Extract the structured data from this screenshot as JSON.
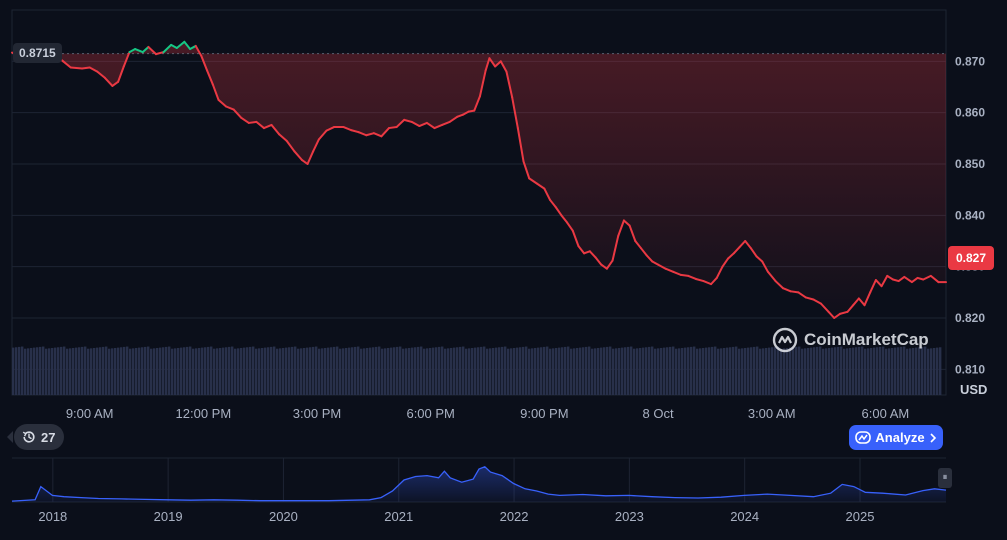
{
  "chart_data": {
    "type": "line",
    "unit_label": "USD",
    "time_axis_ticks": [
      "9:00 AM",
      "12:00 PM",
      "3:00 PM",
      "6:00 PM",
      "9:00 PM",
      "8 Oct",
      "3:00 AM",
      "6:00 AM"
    ],
    "time_axis_tick_hours": [
      9,
      12,
      15,
      18,
      21,
      24,
      27,
      30
    ],
    "x_range_hours": [
      6.95,
      31.6
    ],
    "ylim": [
      0.805,
      0.88
    ],
    "y_ticks": [
      "0.870",
      "0.860",
      "0.850",
      "0.840",
      "0.830",
      "0.820",
      "0.810"
    ],
    "y_tick_values": [
      0.87,
      0.86,
      0.85,
      0.84,
      0.83,
      0.82,
      0.81
    ],
    "open_price": 0.8715,
    "open_price_label": "0.8715",
    "last_price": 0.827,
    "last_price_label": "0.827",
    "price_series": [
      [
        6.95,
        0.8717
      ],
      [
        7.2,
        0.8712
      ],
      [
        7.5,
        0.8718
      ],
      [
        7.8,
        0.872
      ],
      [
        8.1,
        0.8712
      ],
      [
        8.3,
        0.87
      ],
      [
        8.5,
        0.8688
      ],
      [
        8.8,
        0.8686
      ],
      [
        9.0,
        0.8688
      ],
      [
        9.2,
        0.868
      ],
      [
        9.4,
        0.8668
      ],
      [
        9.6,
        0.8652
      ],
      [
        9.75,
        0.866
      ],
      [
        9.9,
        0.869
      ],
      [
        10.05,
        0.8718
      ],
      [
        10.2,
        0.8724
      ],
      [
        10.4,
        0.8718
      ],
      [
        10.55,
        0.8728
      ],
      [
        10.75,
        0.8714
      ],
      [
        10.95,
        0.8718
      ],
      [
        11.15,
        0.8732
      ],
      [
        11.3,
        0.8726
      ],
      [
        11.5,
        0.8738
      ],
      [
        11.65,
        0.8724
      ],
      [
        11.8,
        0.873
      ],
      [
        11.95,
        0.871
      ],
      [
        12.1,
        0.8682
      ],
      [
        12.25,
        0.8655
      ],
      [
        12.4,
        0.8625
      ],
      [
        12.6,
        0.8612
      ],
      [
        12.8,
        0.8606
      ],
      [
        13.0,
        0.859
      ],
      [
        13.2,
        0.858
      ],
      [
        13.4,
        0.8582
      ],
      [
        13.6,
        0.857
      ],
      [
        13.8,
        0.8576
      ],
      [
        14.0,
        0.8558
      ],
      [
        14.2,
        0.8545
      ],
      [
        14.4,
        0.8525
      ],
      [
        14.6,
        0.8508
      ],
      [
        14.75,
        0.85
      ],
      [
        14.9,
        0.8525
      ],
      [
        15.05,
        0.8548
      ],
      [
        15.25,
        0.8565
      ],
      [
        15.45,
        0.8572
      ],
      [
        15.7,
        0.8572
      ],
      [
        15.9,
        0.8566
      ],
      [
        16.1,
        0.8562
      ],
      [
        16.3,
        0.8556
      ],
      [
        16.5,
        0.856
      ],
      [
        16.7,
        0.8554
      ],
      [
        16.9,
        0.857
      ],
      [
        17.1,
        0.8572
      ],
      [
        17.3,
        0.8586
      ],
      [
        17.5,
        0.8582
      ],
      [
        17.7,
        0.8574
      ],
      [
        17.9,
        0.858
      ],
      [
        18.1,
        0.857
      ],
      [
        18.3,
        0.8576
      ],
      [
        18.5,
        0.8582
      ],
      [
        18.7,
        0.8592
      ],
      [
        18.85,
        0.8596
      ],
      [
        19.0,
        0.8602
      ],
      [
        19.15,
        0.8604
      ],
      [
        19.3,
        0.8632
      ],
      [
        19.45,
        0.8682
      ],
      [
        19.55,
        0.8706
      ],
      [
        19.7,
        0.869
      ],
      [
        19.85,
        0.87
      ],
      [
        20.0,
        0.868
      ],
      [
        20.15,
        0.863
      ],
      [
        20.3,
        0.857
      ],
      [
        20.45,
        0.8505
      ],
      [
        20.6,
        0.8472
      ],
      [
        20.8,
        0.8462
      ],
      [
        21.0,
        0.8452
      ],
      [
        21.15,
        0.843
      ],
      [
        21.3,
        0.8416
      ],
      [
        21.45,
        0.84
      ],
      [
        21.6,
        0.8386
      ],
      [
        21.75,
        0.837
      ],
      [
        21.9,
        0.834
      ],
      [
        22.05,
        0.8326
      ],
      [
        22.2,
        0.833
      ],
      [
        22.35,
        0.8318
      ],
      [
        22.5,
        0.8304
      ],
      [
        22.65,
        0.8296
      ],
      [
        22.8,
        0.8312
      ],
      [
        22.95,
        0.836
      ],
      [
        23.1,
        0.839
      ],
      [
        23.25,
        0.838
      ],
      [
        23.4,
        0.835
      ],
      [
        23.55,
        0.8336
      ],
      [
        23.7,
        0.8322
      ],
      [
        23.85,
        0.831
      ],
      [
        24.0,
        0.8304
      ],
      [
        24.2,
        0.8296
      ],
      [
        24.4,
        0.829
      ],
      [
        24.6,
        0.8284
      ],
      [
        24.8,
        0.8282
      ],
      [
        25.0,
        0.8276
      ],
      [
        25.2,
        0.8272
      ],
      [
        25.4,
        0.8266
      ],
      [
        25.55,
        0.8278
      ],
      [
        25.7,
        0.83
      ],
      [
        25.85,
        0.8316
      ],
      [
        26.0,
        0.8326
      ],
      [
        26.15,
        0.8338
      ],
      [
        26.3,
        0.835
      ],
      [
        26.45,
        0.8336
      ],
      [
        26.6,
        0.832
      ],
      [
        26.75,
        0.831
      ],
      [
        26.9,
        0.829
      ],
      [
        27.1,
        0.8272
      ],
      [
        27.3,
        0.8258
      ],
      [
        27.5,
        0.8252
      ],
      [
        27.7,
        0.825
      ],
      [
        27.9,
        0.824
      ],
      [
        28.1,
        0.8236
      ],
      [
        28.3,
        0.8228
      ],
      [
        28.5,
        0.8212
      ],
      [
        28.65,
        0.82
      ],
      [
        28.8,
        0.8208
      ],
      [
        29.0,
        0.8212
      ],
      [
        29.15,
        0.8225
      ],
      [
        29.3,
        0.8238
      ],
      [
        29.45,
        0.8225
      ],
      [
        29.6,
        0.825
      ],
      [
        29.75,
        0.8274
      ],
      [
        29.9,
        0.8262
      ],
      [
        30.05,
        0.8282
      ],
      [
        30.2,
        0.8275
      ],
      [
        30.35,
        0.8272
      ],
      [
        30.5,
        0.828
      ],
      [
        30.7,
        0.827
      ],
      [
        30.85,
        0.8278
      ],
      [
        31.0,
        0.8275
      ],
      [
        31.2,
        0.8282
      ],
      [
        31.4,
        0.827
      ],
      [
        31.6,
        0.827
      ]
    ],
    "volume_level": 0.95,
    "overview": {
      "year_ticks": [
        "2018",
        "2019",
        "2020",
        "2021",
        "2022",
        "2023",
        "2024",
        "2025"
      ],
      "year_tick_values": [
        2018,
        2019,
        2020,
        2021,
        2022,
        2023,
        2024,
        2025
      ],
      "x_range_years": [
        2017.75,
        2025.85
      ],
      "series": [
        [
          2017.75,
          0.02
        ],
        [
          2017.95,
          0.05
        ],
        [
          2018.0,
          0.35
        ],
        [
          2018.05,
          0.25
        ],
        [
          2018.1,
          0.15
        ],
        [
          2018.2,
          0.12
        ],
        [
          2018.35,
          0.1
        ],
        [
          2018.5,
          0.08
        ],
        [
          2018.7,
          0.07
        ],
        [
          2018.9,
          0.06
        ],
        [
          2019.1,
          0.05
        ],
        [
          2019.3,
          0.04
        ],
        [
          2019.5,
          0.05
        ],
        [
          2019.7,
          0.04
        ],
        [
          2019.9,
          0.03
        ],
        [
          2020.1,
          0.03
        ],
        [
          2020.3,
          0.03
        ],
        [
          2020.5,
          0.03
        ],
        [
          2020.7,
          0.04
        ],
        [
          2020.85,
          0.05
        ],
        [
          2020.95,
          0.1
        ],
        [
          2021.05,
          0.25
        ],
        [
          2021.15,
          0.5
        ],
        [
          2021.25,
          0.58
        ],
        [
          2021.35,
          0.6
        ],
        [
          2021.45,
          0.55
        ],
        [
          2021.5,
          0.7
        ],
        [
          2021.55,
          0.55
        ],
        [
          2021.65,
          0.45
        ],
        [
          2021.75,
          0.52
        ],
        [
          2021.8,
          0.75
        ],
        [
          2021.85,
          0.8
        ],
        [
          2021.9,
          0.68
        ],
        [
          2022.0,
          0.6
        ],
        [
          2022.1,
          0.42
        ],
        [
          2022.2,
          0.3
        ],
        [
          2022.3,
          0.25
        ],
        [
          2022.4,
          0.18
        ],
        [
          2022.5,
          0.15
        ],
        [
          2022.7,
          0.17
        ],
        [
          2022.9,
          0.14
        ],
        [
          2023.1,
          0.15
        ],
        [
          2023.3,
          0.12
        ],
        [
          2023.5,
          0.1
        ],
        [
          2023.7,
          0.09
        ],
        [
          2023.9,
          0.11
        ],
        [
          2024.1,
          0.15
        ],
        [
          2024.3,
          0.18
        ],
        [
          2024.5,
          0.15
        ],
        [
          2024.7,
          0.12
        ],
        [
          2024.85,
          0.2
        ],
        [
          2024.95,
          0.4
        ],
        [
          2025.05,
          0.35
        ],
        [
          2025.15,
          0.22
        ],
        [
          2025.3,
          0.2
        ],
        [
          2025.5,
          0.16
        ],
        [
          2025.65,
          0.26
        ],
        [
          2025.75,
          0.3
        ],
        [
          2025.85,
          0.27
        ]
      ]
    },
    "colors": {
      "background": "#0b0f1a",
      "down_line": "#ea3943",
      "up_line": "#16c784",
      "volume": "#28304a",
      "overview_line": "#3861fb",
      "grid": "#1e2433",
      "baseline": "#5a6170"
    }
  },
  "badges": {
    "open_price": "0.8715",
    "last_price": "0.827"
  },
  "watermark": {
    "text": "CoinMarketCap"
  },
  "controls": {
    "history_count": "27",
    "history_icon": "clock-rewind-icon",
    "analyze_label": "Analyze"
  }
}
